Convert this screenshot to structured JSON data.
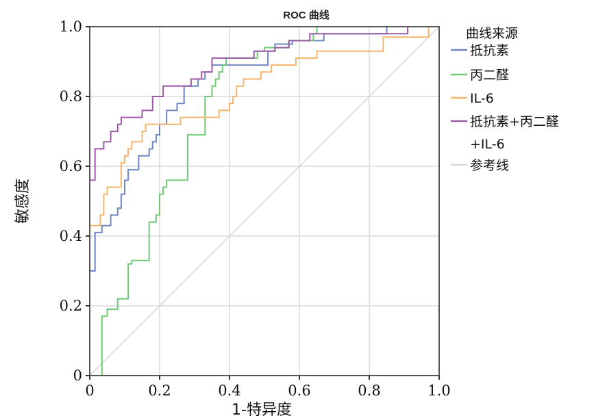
{
  "chart_data": {
    "type": "line",
    "title": "ROC 曲线",
    "xlabel": "1-特异度",
    "ylabel": "敏感度",
    "xlim": [
      0,
      1
    ],
    "ylim": [
      0,
      1
    ],
    "x_ticks": [
      "0",
      "0.2",
      "0.4",
      "0.6",
      "0.8",
      "1.0"
    ],
    "y_ticks": [
      "0",
      "0.2",
      "0.4",
      "0.6",
      "0.8",
      "1.0"
    ],
    "grid": true,
    "legend_title": "曲线来源",
    "legend_position": "right",
    "series": [
      {
        "name": "抵抗素",
        "color": "#6e86c4",
        "points": [
          [
            0,
            0
          ],
          [
            0,
            0.3
          ],
          [
            0.015,
            0.3
          ],
          [
            0.015,
            0.41
          ],
          [
            0.035,
            0.41
          ],
          [
            0.035,
            0.43
          ],
          [
            0.06,
            0.43
          ],
          [
            0.06,
            0.46
          ],
          [
            0.08,
            0.46
          ],
          [
            0.08,
            0.48
          ],
          [
            0.09,
            0.48
          ],
          [
            0.09,
            0.52
          ],
          [
            0.1,
            0.52
          ],
          [
            0.1,
            0.56
          ],
          [
            0.11,
            0.56
          ],
          [
            0.11,
            0.59
          ],
          [
            0.14,
            0.59
          ],
          [
            0.14,
            0.63
          ],
          [
            0.17,
            0.63
          ],
          [
            0.17,
            0.65
          ],
          [
            0.18,
            0.65
          ],
          [
            0.18,
            0.67
          ],
          [
            0.19,
            0.67
          ],
          [
            0.19,
            0.69
          ],
          [
            0.2,
            0.69
          ],
          [
            0.2,
            0.72
          ],
          [
            0.22,
            0.72
          ],
          [
            0.22,
            0.76
          ],
          [
            0.25,
            0.76
          ],
          [
            0.25,
            0.78
          ],
          [
            0.27,
            0.78
          ],
          [
            0.27,
            0.83
          ],
          [
            0.31,
            0.83
          ],
          [
            0.31,
            0.85
          ],
          [
            0.33,
            0.85
          ],
          [
            0.33,
            0.87
          ],
          [
            0.35,
            0.87
          ],
          [
            0.35,
            0.89
          ],
          [
            0.51,
            0.89
          ],
          [
            0.51,
            0.93
          ],
          [
            0.53,
            0.93
          ],
          [
            0.53,
            0.95
          ],
          [
            0.58,
            0.95
          ],
          [
            0.58,
            0.96
          ],
          [
            0.67,
            0.96
          ],
          [
            0.67,
            0.98
          ],
          [
            0.85,
            0.98
          ],
          [
            0.85,
            1.0
          ],
          [
            1.0,
            1.0
          ]
        ]
      },
      {
        "name": "丙二醛",
        "color": "#6fc977",
        "points": [
          [
            0,
            0
          ],
          [
            0.035,
            0
          ],
          [
            0.035,
            0.17
          ],
          [
            0.05,
            0.17
          ],
          [
            0.05,
            0.19
          ],
          [
            0.08,
            0.19
          ],
          [
            0.08,
            0.22
          ],
          [
            0.11,
            0.22
          ],
          [
            0.11,
            0.32
          ],
          [
            0.12,
            0.32
          ],
          [
            0.12,
            0.33
          ],
          [
            0.17,
            0.33
          ],
          [
            0.17,
            0.44
          ],
          [
            0.19,
            0.44
          ],
          [
            0.19,
            0.46
          ],
          [
            0.2,
            0.46
          ],
          [
            0.2,
            0.52
          ],
          [
            0.21,
            0.52
          ],
          [
            0.21,
            0.54
          ],
          [
            0.22,
            0.54
          ],
          [
            0.22,
            0.56
          ],
          [
            0.28,
            0.56
          ],
          [
            0.28,
            0.69
          ],
          [
            0.33,
            0.69
          ],
          [
            0.33,
            0.8
          ],
          [
            0.35,
            0.8
          ],
          [
            0.35,
            0.83
          ],
          [
            0.36,
            0.83
          ],
          [
            0.36,
            0.85
          ],
          [
            0.37,
            0.85
          ],
          [
            0.37,
            0.87
          ],
          [
            0.38,
            0.87
          ],
          [
            0.38,
            0.89
          ],
          [
            0.39,
            0.89
          ],
          [
            0.39,
            0.91
          ],
          [
            0.48,
            0.91
          ],
          [
            0.48,
            0.93
          ],
          [
            0.5,
            0.93
          ],
          [
            0.5,
            0.94
          ],
          [
            0.57,
            0.94
          ],
          [
            0.57,
            0.96
          ],
          [
            0.64,
            0.96
          ],
          [
            0.64,
            0.98
          ],
          [
            0.65,
            0.98
          ],
          [
            0.65,
            1.0
          ],
          [
            1.0,
            1.0
          ]
        ]
      },
      {
        "name": "IL-6",
        "color": "#f7b56b",
        "points": [
          [
            0,
            0
          ],
          [
            0,
            0.43
          ],
          [
            0.03,
            0.43
          ],
          [
            0.03,
            0.46
          ],
          [
            0.04,
            0.46
          ],
          [
            0.04,
            0.52
          ],
          [
            0.05,
            0.52
          ],
          [
            0.05,
            0.54
          ],
          [
            0.09,
            0.54
          ],
          [
            0.09,
            0.61
          ],
          [
            0.1,
            0.61
          ],
          [
            0.1,
            0.63
          ],
          [
            0.11,
            0.63
          ],
          [
            0.11,
            0.65
          ],
          [
            0.12,
            0.65
          ],
          [
            0.12,
            0.67
          ],
          [
            0.15,
            0.67
          ],
          [
            0.15,
            0.7
          ],
          [
            0.16,
            0.7
          ],
          [
            0.16,
            0.72
          ],
          [
            0.2,
            0.72
          ],
          [
            0.2,
            0.72
          ],
          [
            0.26,
            0.72
          ],
          [
            0.26,
            0.74
          ],
          [
            0.37,
            0.74
          ],
          [
            0.37,
            0.76
          ],
          [
            0.4,
            0.76
          ],
          [
            0.4,
            0.78
          ],
          [
            0.41,
            0.78
          ],
          [
            0.41,
            0.8
          ],
          [
            0.42,
            0.8
          ],
          [
            0.42,
            0.83
          ],
          [
            0.44,
            0.83
          ],
          [
            0.44,
            0.85
          ],
          [
            0.49,
            0.85
          ],
          [
            0.49,
            0.87
          ],
          [
            0.52,
            0.87
          ],
          [
            0.52,
            0.89
          ],
          [
            0.59,
            0.89
          ],
          [
            0.59,
            0.91
          ],
          [
            0.65,
            0.91
          ],
          [
            0.65,
            0.93
          ],
          [
            0.84,
            0.93
          ],
          [
            0.84,
            0.97
          ],
          [
            0.97,
            0.97
          ],
          [
            0.97,
            1.0
          ],
          [
            1.0,
            1.0
          ]
        ]
      },
      {
        "name": "抵抗素+丙二醛+IL-6",
        "color": "#9c5aa7",
        "points": [
          [
            0,
            0
          ],
          [
            0,
            0.56
          ],
          [
            0.015,
            0.56
          ],
          [
            0.015,
            0.65
          ],
          [
            0.04,
            0.65
          ],
          [
            0.04,
            0.67
          ],
          [
            0.06,
            0.67
          ],
          [
            0.06,
            0.7
          ],
          [
            0.08,
            0.7
          ],
          [
            0.08,
            0.72
          ],
          [
            0.09,
            0.72
          ],
          [
            0.09,
            0.74
          ],
          [
            0.15,
            0.74
          ],
          [
            0.15,
            0.76
          ],
          [
            0.18,
            0.76
          ],
          [
            0.18,
            0.8
          ],
          [
            0.21,
            0.8
          ],
          [
            0.21,
            0.83
          ],
          [
            0.27,
            0.83
          ],
          [
            0.27,
            0.83
          ],
          [
            0.29,
            0.83
          ],
          [
            0.29,
            0.85
          ],
          [
            0.32,
            0.85
          ],
          [
            0.32,
            0.87
          ],
          [
            0.35,
            0.87
          ],
          [
            0.35,
            0.91
          ],
          [
            0.47,
            0.91
          ],
          [
            0.47,
            0.93
          ],
          [
            0.53,
            0.93
          ],
          [
            0.53,
            0.94
          ],
          [
            0.57,
            0.94
          ],
          [
            0.57,
            0.96
          ],
          [
            0.63,
            0.96
          ],
          [
            0.63,
            0.98
          ],
          [
            0.91,
            0.98
          ],
          [
            0.91,
            1.0
          ],
          [
            1.0,
            1.0
          ]
        ]
      },
      {
        "name": "参考线",
        "color": "#d9d9d9",
        "points": [
          [
            0,
            0
          ],
          [
            1,
            1
          ]
        ]
      }
    ]
  }
}
